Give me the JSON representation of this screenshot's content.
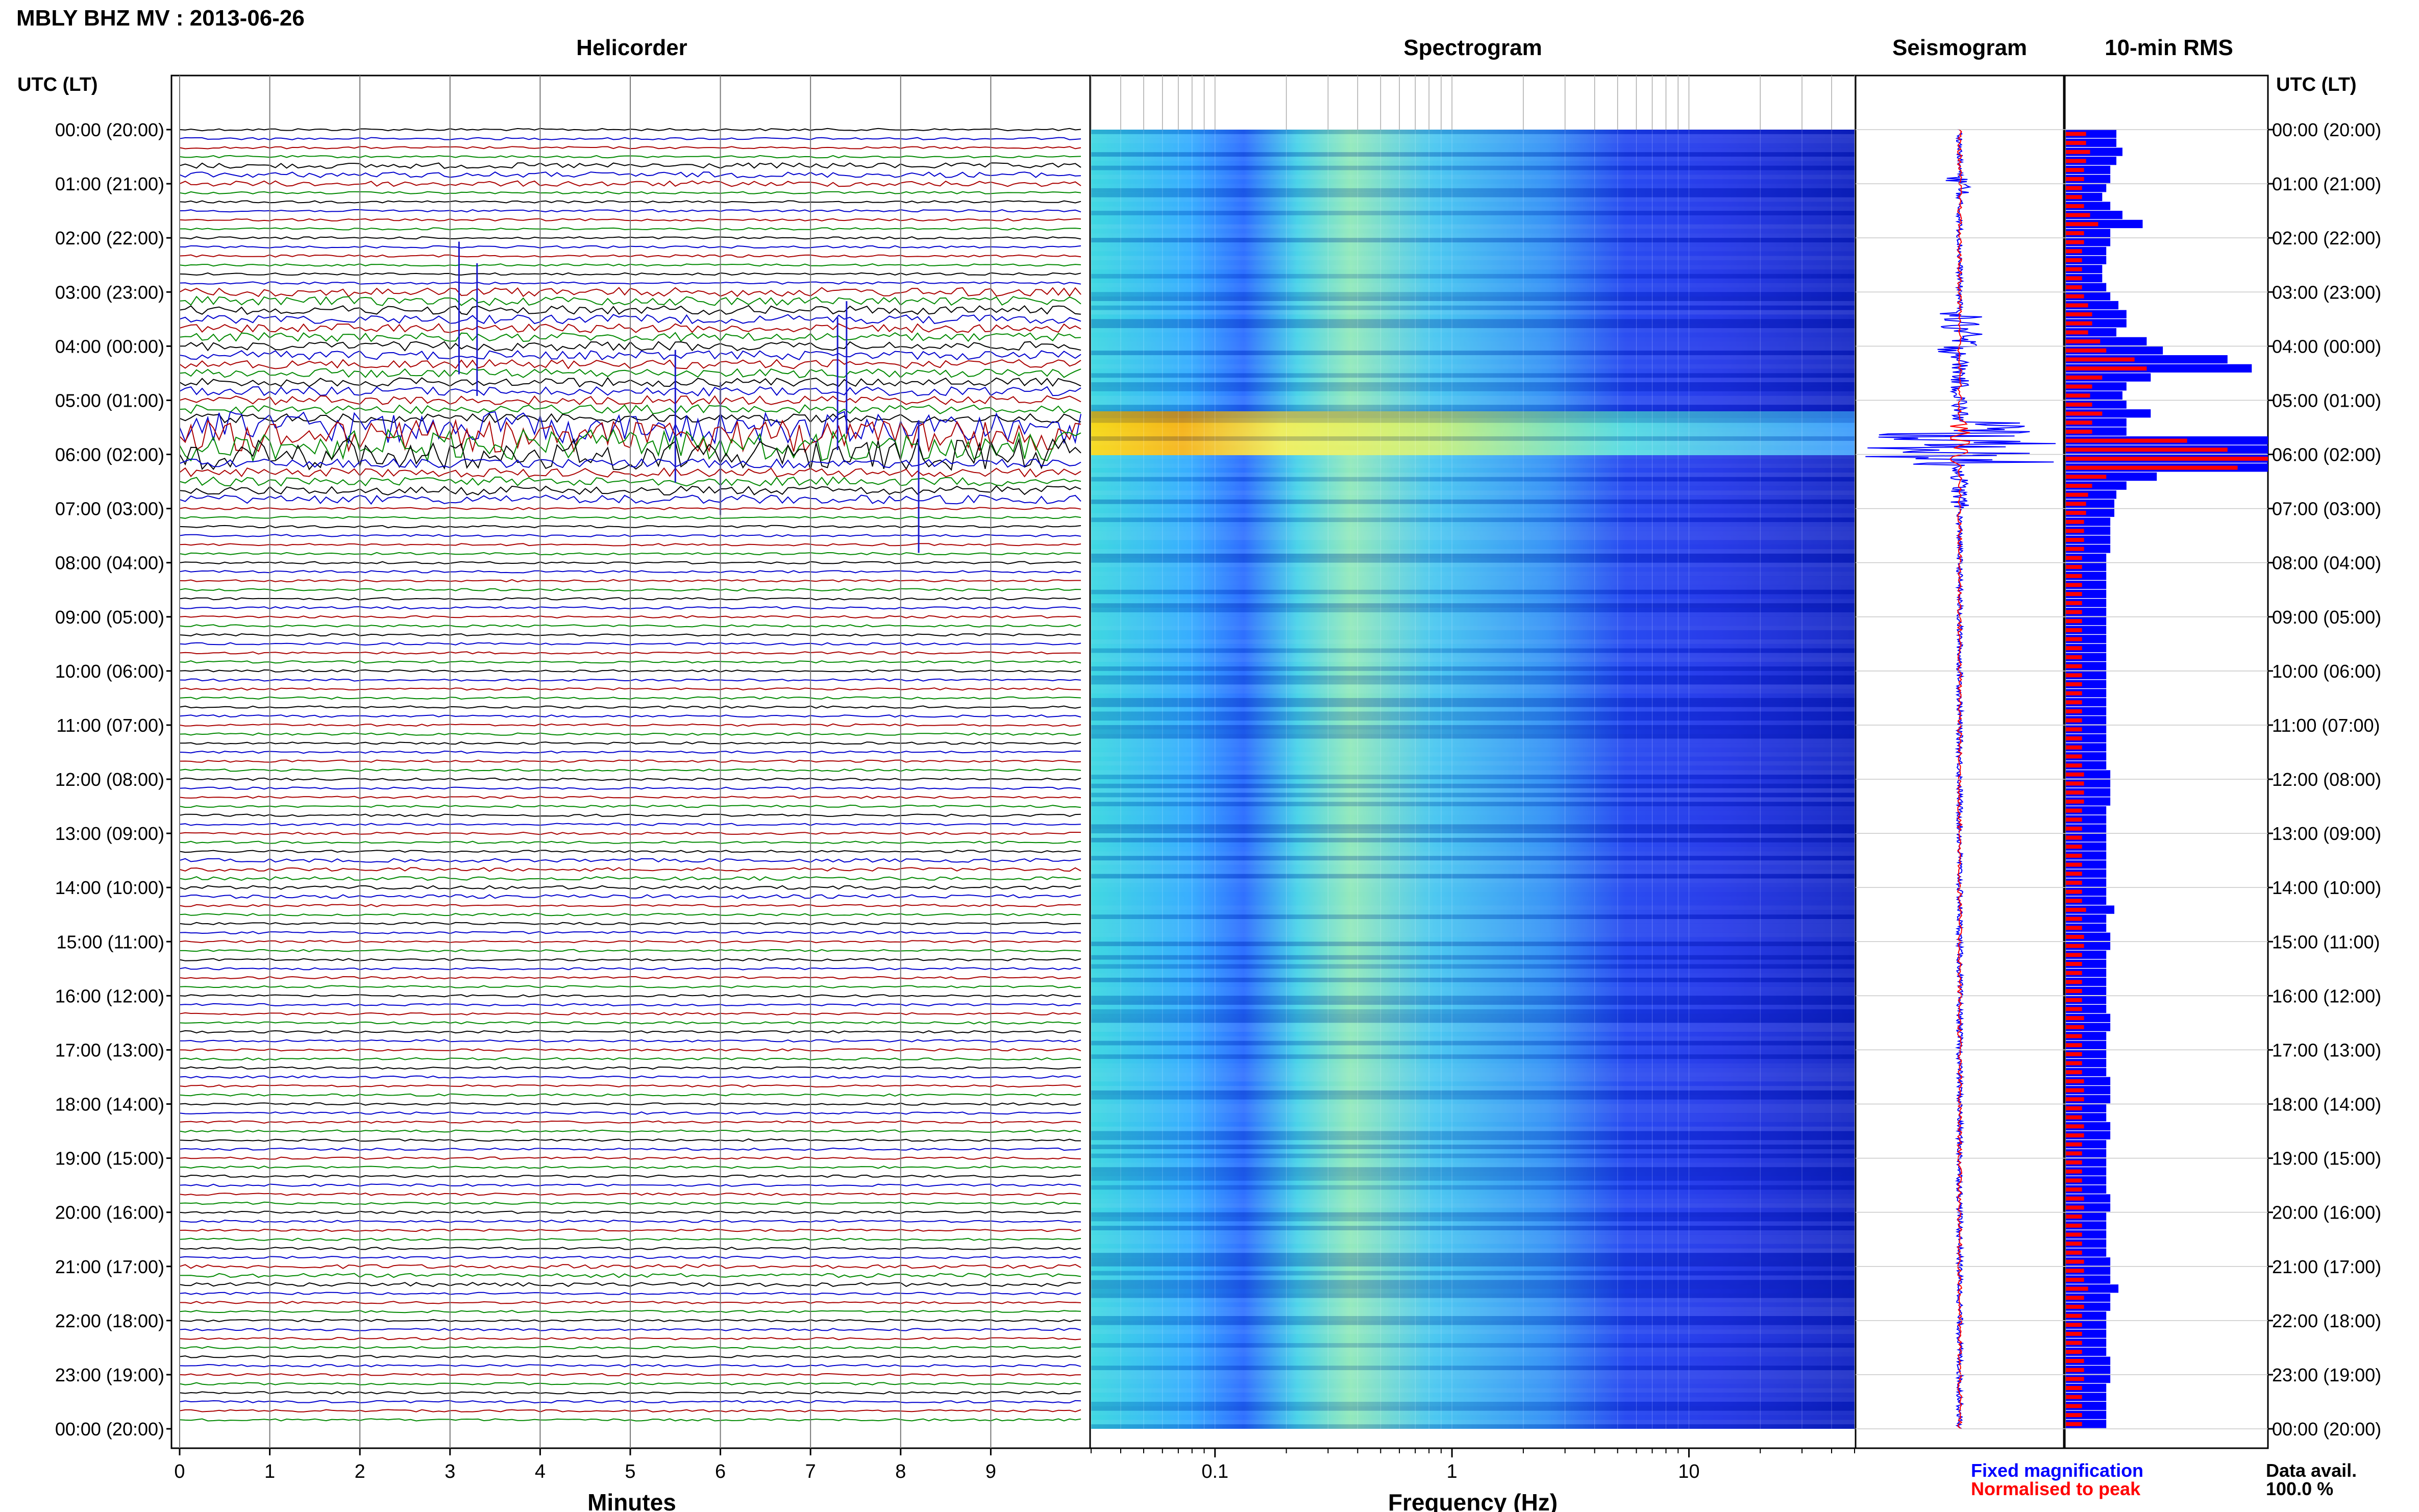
{
  "header": {
    "title": "MBLY BHZ MV : 2013-06-26",
    "utc_label_left": "UTC (LT)",
    "utc_label_right": "UTC (LT)"
  },
  "panels": {
    "helicorder_title": "Helicorder",
    "spectrogram_title": "Spectrogram",
    "seismogram_title": "Seismogram",
    "rms_title": "10-min RMS"
  },
  "axes": {
    "time_labels": [
      "00:00 (20:00)",
      "01:00 (21:00)",
      "02:00 (22:00)",
      "03:00 (23:00)",
      "04:00 (00:00)",
      "05:00 (01:00)",
      "06:00 (02:00)",
      "07:00 (03:00)",
      "08:00 (04:00)",
      "09:00 (05:00)",
      "10:00 (06:00)",
      "11:00 (07:00)",
      "12:00 (08:00)",
      "13:00 (09:00)",
      "14:00 (10:00)",
      "15:00 (11:00)",
      "16:00 (12:00)",
      "17:00 (13:00)",
      "18:00 (14:00)",
      "19:00 (15:00)",
      "20:00 (16:00)",
      "21:00 (17:00)",
      "22:00 (18:00)",
      "23:00 (19:00)",
      "00:00 (20:00)"
    ],
    "minute_ticks": [
      "0",
      "1",
      "2",
      "3",
      "4",
      "5",
      "6",
      "7",
      "8",
      "9"
    ],
    "minutes_label": "Minutes",
    "freq_ticks": [
      "0.1",
      "1",
      "10"
    ],
    "freq_label": "Frequency (Hz)"
  },
  "legend": {
    "fixed": "Fixed magnification",
    "normalised": "Normalised to peak",
    "avail_label": "Data avail.",
    "avail_value": "100.0 %"
  },
  "colors": {
    "helicorder_traces": [
      "#000000",
      "#0000cc",
      "#aa0000",
      "#008800"
    ],
    "fixed_magnification": "#0000ff",
    "normalised_to_peak": "#ff0000",
    "grid": "#bbbbbb"
  },
  "chart_data": {
    "type": "seismic-daily-summary",
    "station": "MBLY",
    "channel": "BHZ",
    "network": "MV",
    "date": "2013-06-26",
    "helicorder": {
      "rows": 144,
      "minutes_per_row": 10,
      "xlim": [
        0,
        10
      ],
      "active_periods_utc": [
        "00:30-01:00",
        "03:00-07:00",
        "13:30-14:30",
        "21:00-21:30"
      ],
      "peak_activity_utc": "05:30-06:10"
    },
    "spectrogram": {
      "x_scale": "log",
      "xlim": [
        0.03,
        50
      ],
      "strong_band_utc": "05:30-06:10"
    },
    "rms": {
      "interval_minutes": 10,
      "fixed_magnification": [
        0.25,
        0.25,
        0.28,
        0.25,
        0.22,
        0.22,
        0.2,
        0.18,
        0.22,
        0.28,
        0.38,
        0.22,
        0.22,
        0.2,
        0.2,
        0.18,
        0.18,
        0.2,
        0.22,
        0.26,
        0.3,
        0.3,
        0.25,
        0.4,
        0.48,
        0.8,
        0.92,
        0.42,
        0.3,
        0.28,
        0.3,
        0.42,
        0.3,
        0.3,
        1.0,
        1.0,
        1.0,
        1.0,
        0.45,
        0.3,
        0.25,
        0.24,
        0.24,
        0.22,
        0.22,
        0.22,
        0.22,
        0.2,
        0.2,
        0.2,
        0.2,
        0.2,
        0.2,
        0.2,
        0.2,
        0.2,
        0.2,
        0.2,
        0.2,
        0.2,
        0.2,
        0.2,
        0.2,
        0.2,
        0.2,
        0.2,
        0.2,
        0.2,
        0.2,
        0.2,
        0.2,
        0.22,
        0.22,
        0.22,
        0.22,
        0.2,
        0.2,
        0.2,
        0.2,
        0.2,
        0.2,
        0.2,
        0.2,
        0.2,
        0.2,
        0.2,
        0.24,
        0.2,
        0.2,
        0.22,
        0.22,
        0.2,
        0.2,
        0.2,
        0.2,
        0.2,
        0.2,
        0.2,
        0.22,
        0.22,
        0.2,
        0.2,
        0.2,
        0.2,
        0.2,
        0.22,
        0.22,
        0.22,
        0.2,
        0.2,
        0.22,
        0.22,
        0.2,
        0.2,
        0.2,
        0.2,
        0.2,
        0.2,
        0.22,
        0.22,
        0.2,
        0.2,
        0.2,
        0.2,
        0.2,
        0.22,
        0.22,
        0.22,
        0.26,
        0.22,
        0.22,
        0.2,
        0.2,
        0.2,
        0.2,
        0.2,
        0.22,
        0.22,
        0.22,
        0.2,
        0.2,
        0.2,
        0.2,
        0.2
      ],
      "normalised_to_peak": [
        0.1,
        0.1,
        0.12,
        0.1,
        0.09,
        0.09,
        0.08,
        0.08,
        0.09,
        0.12,
        0.16,
        0.09,
        0.09,
        0.08,
        0.08,
        0.08,
        0.08,
        0.08,
        0.09,
        0.11,
        0.13,
        0.13,
        0.11,
        0.17,
        0.2,
        0.34,
        0.4,
        0.18,
        0.13,
        0.12,
        0.13,
        0.18,
        0.13,
        0.13,
        0.6,
        0.8,
        1.0,
        0.85,
        0.2,
        0.13,
        0.11,
        0.1,
        0.1,
        0.09,
        0.09,
        0.09,
        0.09,
        0.08,
        0.08,
        0.08,
        0.08,
        0.08,
        0.08,
        0.08,
        0.08,
        0.08,
        0.08,
        0.08,
        0.08,
        0.08,
        0.08,
        0.08,
        0.08,
        0.08,
        0.08,
        0.08,
        0.08,
        0.08,
        0.08,
        0.08,
        0.08,
        0.09,
        0.09,
        0.09,
        0.09,
        0.08,
        0.08,
        0.08,
        0.08,
        0.08,
        0.08,
        0.08,
        0.08,
        0.08,
        0.08,
        0.08,
        0.1,
        0.08,
        0.08,
        0.09,
        0.09,
        0.08,
        0.08,
        0.08,
        0.08,
        0.08,
        0.08,
        0.08,
        0.09,
        0.09,
        0.08,
        0.08,
        0.08,
        0.08,
        0.08,
        0.09,
        0.09,
        0.09,
        0.08,
        0.08,
        0.09,
        0.09,
        0.08,
        0.08,
        0.08,
        0.08,
        0.08,
        0.08,
        0.09,
        0.09,
        0.08,
        0.08,
        0.08,
        0.08,
        0.08,
        0.09,
        0.09,
        0.09,
        0.11,
        0.09,
        0.09,
        0.08,
        0.08,
        0.08,
        0.08,
        0.08,
        0.09,
        0.09,
        0.09,
        0.08,
        0.08,
        0.08,
        0.08,
        0.08
      ]
    }
  }
}
